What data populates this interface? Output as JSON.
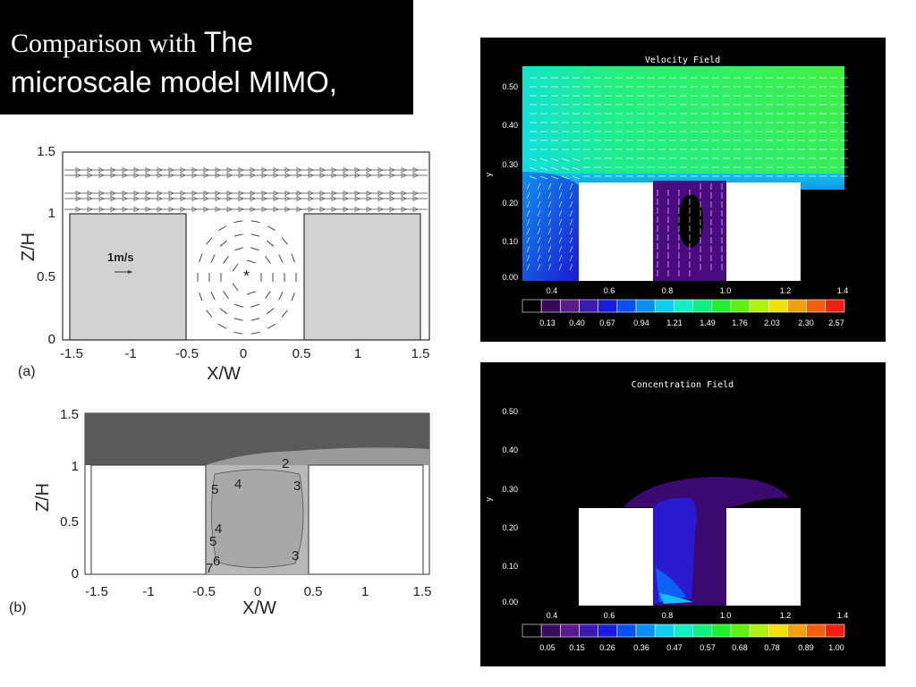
{
  "slide": {
    "title_serif": "Comparison with",
    "title_sans": "The",
    "title_line2": "microscale model MIMO,"
  },
  "figure_a": {
    "y_label": "Z/H",
    "x_label": "X/W",
    "panel_label": "(a)",
    "scale_label": "1m/s",
    "vortex_mark": "*",
    "y_ticks": [
      "0",
      "0.5",
      "1",
      "1.5"
    ],
    "x_ticks": [
      "-1.5",
      "-1",
      "-0.5",
      "0",
      "0.5",
      "1",
      "1.5"
    ]
  },
  "figure_b": {
    "y_label": "Z/H",
    "x_label": "X/W",
    "panel_label": "(b)",
    "y_ticks": [
      "0",
      "0.5",
      "1",
      "1.5"
    ],
    "x_ticks": [
      "-1.5",
      "-1",
      "-0.5",
      "0",
      "0.5",
      "1",
      "1.5"
    ],
    "contour_labels": [
      "2",
      "3",
      "4",
      "5",
      "4",
      "5",
      "6",
      "7",
      "3"
    ]
  },
  "velocity_plot": {
    "title": "Velocity Field",
    "y_label": "y",
    "y_ticks": [
      "0.00",
      "0.10",
      "0.20",
      "0.30",
      "0.40",
      "0.50"
    ],
    "x_ticks": [
      "0.4",
      "0.6",
      "0.8",
      "1.0",
      "1.2",
      "1.4"
    ],
    "colorbar_labels": [
      "0.13",
      "0.40",
      "0.67",
      "0.94",
      "1.21",
      "1.49",
      "1.76",
      "2.03",
      "2.30",
      "2.57"
    ],
    "colorbar_colors": [
      "#000000",
      "#3a0a5a",
      "#5a1a8a",
      "#3a1ab0",
      "#1a1ae0",
      "#0a50f0",
      "#0a90f0",
      "#10d0f0",
      "#10f0c0",
      "#10f080",
      "#20f030",
      "#60f010",
      "#b0f010",
      "#f0e010",
      "#f0a010",
      "#f06010",
      "#f02010"
    ]
  },
  "concentration_plot": {
    "title": "Concentration Field",
    "y_label": "y",
    "y_ticks": [
      "0.00",
      "0.10",
      "0.20",
      "0.30",
      "0.40",
      "0.50"
    ],
    "x_ticks": [
      "0.4",
      "0.6",
      "0.8",
      "1.0",
      "1.2",
      "1.4"
    ],
    "colorbar_labels": [
      "0.05",
      "0.15",
      "0.26",
      "0.36",
      "0.47",
      "0.57",
      "0.68",
      "0.78",
      "0.89",
      "1.00"
    ],
    "colorbar_colors": [
      "#000000",
      "#3a0a5a",
      "#5a1a8a",
      "#3a1ab0",
      "#1a1ae0",
      "#0a50f0",
      "#0a90f0",
      "#10d0f0",
      "#10f0c0",
      "#10f080",
      "#20f030",
      "#60f010",
      "#b0f010",
      "#f0e010",
      "#f0a010",
      "#f06010",
      "#f02010"
    ]
  }
}
